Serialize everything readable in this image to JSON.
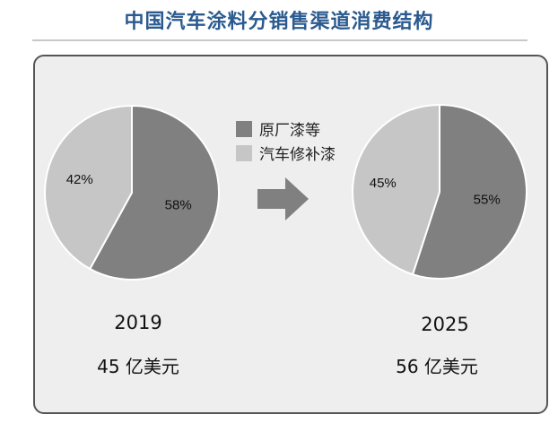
{
  "title": "中国汽车涂料分销售渠道消费结构",
  "legend": [
    {
      "name": "原厂漆等",
      "color": "#808080"
    },
    {
      "name": "汽车修补漆",
      "color": "#c6c6c6"
    }
  ],
  "chart_data": [
    {
      "type": "pie",
      "year": "2019",
      "total": "45 亿美元",
      "slices": [
        {
          "name": "原厂漆等",
          "value": 58,
          "label": "58%"
        },
        {
          "name": "汽车修补漆",
          "value": 42,
          "label": "42%"
        }
      ]
    },
    {
      "type": "pie",
      "year": "2025",
      "total": "56 亿美元",
      "slices": [
        {
          "name": "原厂漆等",
          "value": 55,
          "label": "55%"
        },
        {
          "name": "汽车修补漆",
          "value": 45,
          "label": "45%"
        }
      ]
    }
  ]
}
